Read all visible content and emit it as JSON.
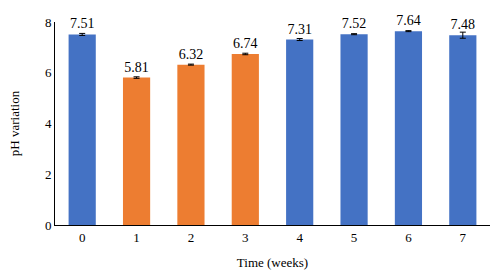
{
  "chart_data": {
    "type": "bar",
    "x_label": "Time (weeks)",
    "y_label": "pH variation",
    "categories": [
      "0",
      "1",
      "2",
      "3",
      "4",
      "5",
      "6",
      "7"
    ],
    "values": [
      7.51,
      5.81,
      6.32,
      6.74,
      7.31,
      7.52,
      7.64,
      7.48
    ],
    "errors": [
      0.04,
      0.03,
      0.02,
      0.03,
      0.04,
      0.02,
      0.02,
      0.12
    ],
    "colors": [
      "#4472c4",
      "#ed7d31",
      "#ed7d31",
      "#ed7d31",
      "#4472c4",
      "#4472c4",
      "#4472c4",
      "#4472c4"
    ],
    "data_labels": true,
    "grid": false,
    "ylim": [
      0,
      8
    ],
    "yticks": [
      0,
      2,
      4,
      6,
      8
    ]
  }
}
